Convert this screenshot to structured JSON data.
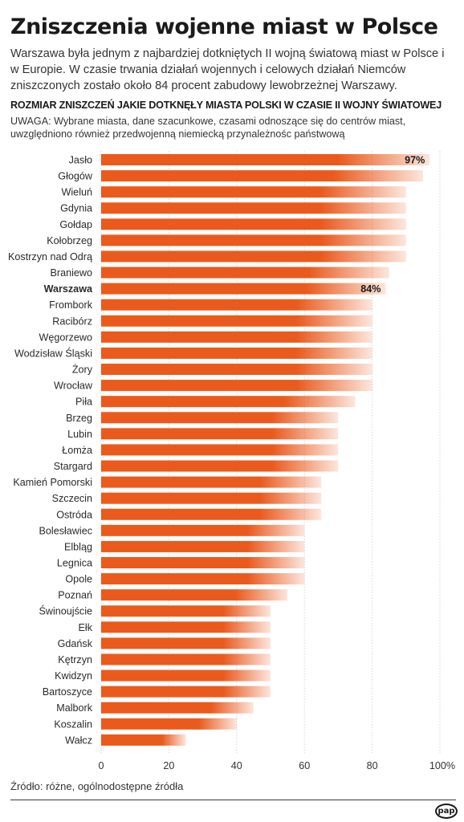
{
  "header": {
    "title": "Zniszczenia wojenne miast w Polsce",
    "lead": "Warszawa była jednym z najbardziej dotkniętych II wojną światową miast w Polsce i w Europie. W czasie trwania działań wojennych i celowych działań Niemców zniszczonych zostało około 84 procent zabudowy lewobrzeżnej Warszawy.",
    "subtitle": "ROZMIAR ZNISZCZEŃ JAKIE DOTKNĘŁY MIASTA POLSKI W CZASIE II WOJNY ŚWIATOWEJ",
    "note": "UWAGA: Wybrane miasta, dane szacunkowe, czasami odnoszące się do centrów miast, uwzględniono również przedwojenną niemiecką przynależnośc państwową"
  },
  "footer": {
    "source": "Źródło: różne, ogólnodostępne źródła",
    "logo": "pap"
  },
  "chart_data": {
    "type": "bar",
    "orientation": "horizontal",
    "categories": [
      "Jasło",
      "Głogów",
      "Wieluń",
      "Gdynia",
      "Gołdap",
      "Kołobrzeg",
      "Kostrzyn nad Odrą",
      "Braniewo",
      "Warszawa",
      "Frombork",
      "Racibórz",
      "Węgorzewo",
      "Wodzisław Śląski",
      "Żory",
      "Wrocław",
      "Piła",
      "Brzeg",
      "Lubin",
      "Łomża",
      "Stargard",
      "Kamień Pomorski",
      "Szczecin",
      "Ostróda",
      "Bolesławiec",
      "Elbląg",
      "Legnica",
      "Opole",
      "Poznań",
      "Świnoujście",
      "Ełk",
      "Gdańsk",
      "Kętrzyn",
      "Kwidzyn",
      "Bartoszyce",
      "Malbork",
      "Koszalin",
      "Wałcz"
    ],
    "values": [
      97,
      95,
      90,
      90,
      90,
      90,
      90,
      85,
      84,
      80,
      80,
      80,
      80,
      80,
      80,
      75,
      70,
      70,
      70,
      70,
      65,
      65,
      65,
      60,
      60,
      60,
      60,
      55,
      50,
      50,
      50,
      50,
      50,
      50,
      45,
      40,
      25
    ],
    "highlight": "Warszawa",
    "data_labels": [
      {
        "category": "Jasło",
        "text": "97%"
      },
      {
        "category": "Warszawa",
        "text": "84%"
      }
    ],
    "xticks": [
      "0",
      "20",
      "40",
      "60",
      "80",
      "100%"
    ],
    "xlim": [
      0,
      100
    ],
    "grid": true,
    "bar_color": "#ea5a1c",
    "title": "",
    "xlabel": "",
    "ylabel": ""
  }
}
